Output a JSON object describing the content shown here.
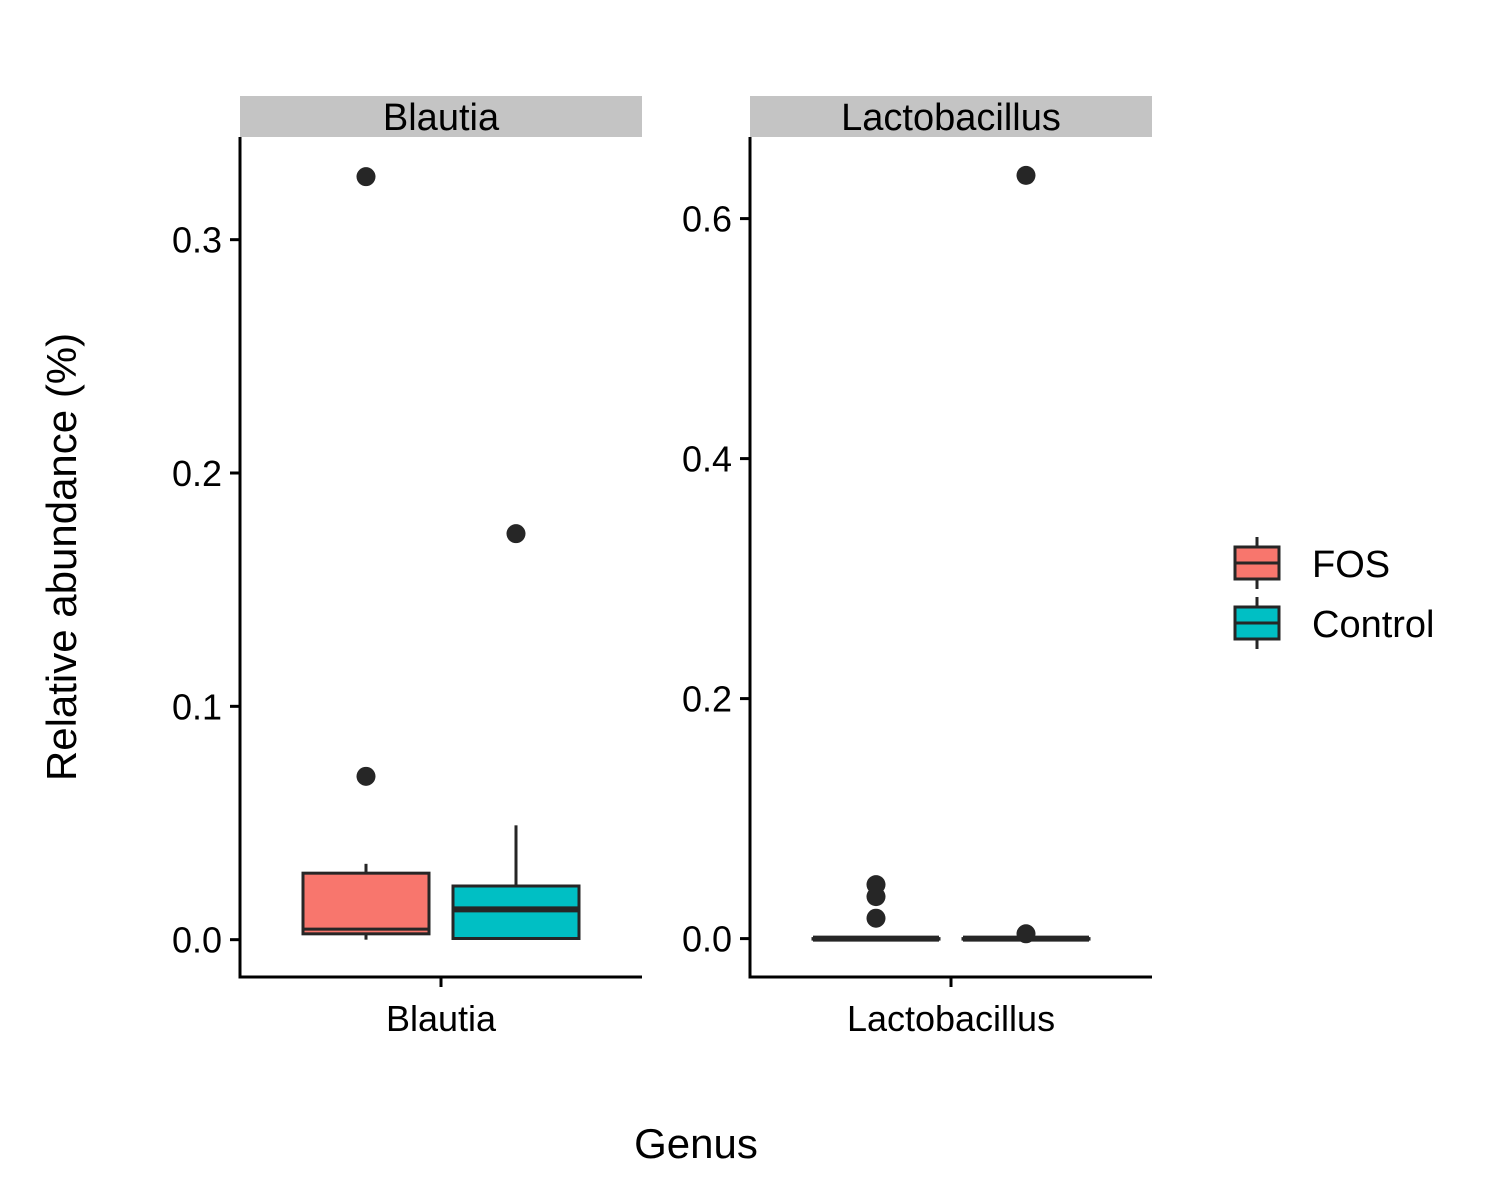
{
  "chart_data": {
    "type": "boxplot",
    "xlabel": "Genus",
    "ylabel": "Relative abundance (%)",
    "legend": {
      "position": "right",
      "entries": [
        {
          "name": "FOS",
          "color": "#F8766D"
        },
        {
          "name": "Control",
          "color": "#00BFC4"
        }
      ]
    },
    "grid": false,
    "panels": [
      {
        "strip": "Blautia",
        "category": "Blautia",
        "ylim": [
          -0.016,
          0.344
        ],
        "yticks": [
          0.0,
          0.1,
          0.2,
          0.3
        ],
        "ytick_labels": [
          "0.0",
          "0.1",
          "0.2",
          "0.3"
        ],
        "boxes": [
          {
            "group": "FOS",
            "whisker_low": 0.0,
            "q1": 0.0025,
            "median": 0.0045,
            "q3": 0.0285,
            "whisker_high": 0.0325,
            "outliers": [
              0.07,
              0.327
            ]
          },
          {
            "group": "Control",
            "whisker_low": 0.0,
            "q1": 0.0005,
            "median": 0.013,
            "q3": 0.023,
            "whisker_high": 0.049,
            "outliers": [
              0.174
            ]
          }
        ]
      },
      {
        "strip": "Lactobacillus",
        "category": "Lactobacillus",
        "ylim": [
          -0.032,
          0.668
        ],
        "yticks": [
          0.0,
          0.2,
          0.4,
          0.6
        ],
        "ytick_labels": [
          "0.0",
          "0.2",
          "0.4",
          "0.6"
        ],
        "boxes": [
          {
            "group": "FOS",
            "whisker_low": 0.0,
            "q1": 0.0,
            "median": 0.0,
            "q3": 0.0,
            "whisker_high": 0.0,
            "outliers": [
              0.017,
              0.035,
              0.045
            ]
          },
          {
            "group": "Control",
            "whisker_low": 0.0,
            "q1": 0.0,
            "median": 0.0,
            "q3": 0.0,
            "whisker_high": 0.0,
            "outliers": [
              0.004,
              0.636
            ]
          }
        ]
      }
    ]
  }
}
